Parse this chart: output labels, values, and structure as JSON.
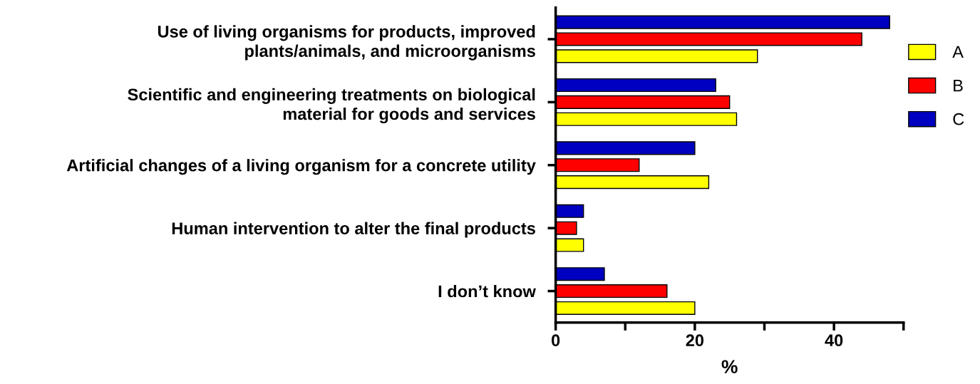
{
  "chart_data": {
    "type": "bar",
    "orientation": "horizontal",
    "xlabel": "%",
    "categories": [
      "Use of living organisms for products, improved\nplants/animals, and microorganisms",
      "Scientific and engineering treatments on biological\nmaterial for goods and services",
      "Artificial changes of a living organism for a concrete utility",
      "Human intervention to alter the final products",
      "I don’t know"
    ],
    "series": [
      {
        "name": "A",
        "color": "#ffff00",
        "values": [
          29,
          26,
          22,
          4,
          20
        ]
      },
      {
        "name": "B",
        "color": "#ff0000",
        "values": [
          44,
          25,
          12,
          3,
          16
        ]
      },
      {
        "name": "C",
        "color": "#0000c0",
        "values": [
          48,
          23,
          20,
          4,
          7
        ]
      }
    ],
    "xlim": [
      0,
      50
    ],
    "xticks": [
      0,
      {
        "value": 10,
        "label": null
      },
      20,
      {
        "value": 30,
        "label": null
      },
      40,
      {
        "value": 50,
        "label": null
      }
    ],
    "grid": false,
    "legend": "right"
  }
}
